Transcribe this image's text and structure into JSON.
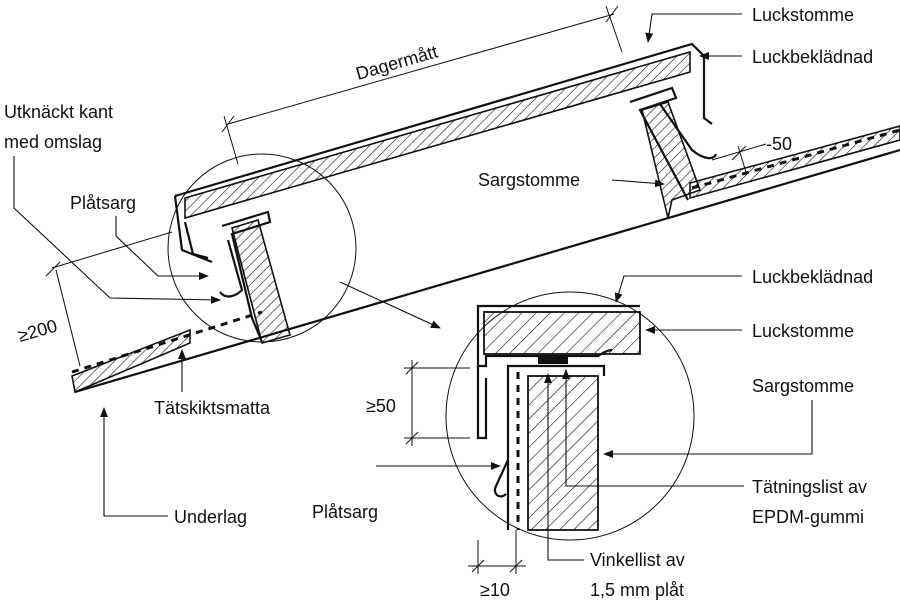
{
  "labels": {
    "luckstomme_top": "Luckstomme",
    "luckbekladnad_top": "Luckbeklädnad",
    "dagermatt": "Dagermått",
    "utknackt_1": "Utknäckt kant",
    "utknackt_2": "med omslag",
    "platsarg_left": "Plåtsarg",
    "sargstomme_top": "Sargstomme",
    "dim_50_top": "-50",
    "dim_200": "≥200",
    "tatskiktsmatta": "Tätskiktsmatta",
    "underlag": "Underlag",
    "luckbekladnad_detail": "Luckbeklädnad",
    "luckstomme_detail": "Luckstomme",
    "sargstomme_detail": "Sargstomme",
    "dim_50_detail": "≥50",
    "platsarg_detail": "Plåtsarg",
    "tatningslist_1": "Tätningslist av",
    "tatningslist_2": "EPDM-gummi",
    "vinkellist_1": "Vinkellist av",
    "vinkellist_2": "1,5 mm plåt",
    "dim_10": "≥10"
  }
}
